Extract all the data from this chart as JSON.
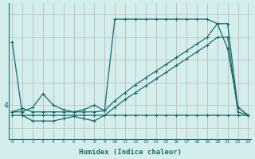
{
  "bg_color": "#d4eeee",
  "line_color": "#1a6b6b",
  "grid_color_v": "#c4b8b8",
  "grid_color_h": "#b8c8c8",
  "xlabel": "Humidex (Indice chaleur)",
  "xmin": 0,
  "xmax": 23,
  "ymin": 2.5,
  "ymax": 8.5,
  "ytick_val": 4.0,
  "ytick_label": "4",
  "series": [
    {
      "x": [
        0,
        1,
        2,
        3,
        4,
        5,
        6,
        7,
        8,
        9,
        10,
        11,
        12,
        13,
        14,
        15,
        16,
        17,
        18,
        19,
        20,
        21,
        22,
        23
      ],
      "y": [
        6.8,
        3.55,
        3.55,
        3.55,
        3.55,
        3.55,
        3.55,
        3.55,
        3.55,
        3.55,
        3.55,
        3.55,
        3.55,
        3.55,
        3.55,
        3.55,
        3.55,
        3.55,
        3.55,
        3.55,
        3.55,
        3.55,
        3.55,
        3.55
      ]
    },
    {
      "x": [
        0,
        1,
        2,
        3,
        4,
        5,
        6,
        7,
        8,
        9,
        10,
        11,
        12,
        13,
        14,
        15,
        16,
        17,
        18,
        19,
        20,
        21,
        22,
        23
      ],
      "y": [
        3.7,
        3.7,
        3.9,
        4.5,
        4.0,
        3.8,
        3.7,
        3.8,
        4.0,
        3.75,
        7.8,
        7.8,
        7.8,
        7.8,
        7.8,
        7.8,
        7.8,
        7.8,
        7.8,
        7.8,
        7.6,
        6.5,
        3.9,
        3.55
      ]
    },
    {
      "x": [
        0,
        1,
        2,
        3,
        4,
        5,
        6,
        7,
        8,
        9,
        10,
        11,
        12,
        13,
        14,
        15,
        16,
        17,
        18,
        19,
        20,
        21,
        22,
        23
      ],
      "y": [
        3.7,
        3.85,
        3.7,
        3.7,
        3.7,
        3.7,
        3.7,
        3.7,
        3.7,
        3.75,
        4.2,
        4.55,
        4.9,
        5.2,
        5.5,
        5.8,
        6.1,
        6.4,
        6.7,
        7.0,
        7.6,
        7.6,
        3.9,
        3.55
      ]
    },
    {
      "x": [
        0,
        1,
        2,
        3,
        4,
        5,
        6,
        7,
        8,
        9,
        10,
        11,
        12,
        13,
        14,
        15,
        16,
        17,
        18,
        19,
        20,
        21,
        22,
        23
      ],
      "y": [
        3.55,
        3.55,
        3.3,
        3.3,
        3.3,
        3.4,
        3.5,
        3.4,
        3.3,
        3.55,
        3.9,
        4.25,
        4.55,
        4.85,
        5.15,
        5.45,
        5.75,
        6.05,
        6.35,
        6.65,
        7.0,
        7.0,
        3.7,
        3.55
      ]
    }
  ]
}
